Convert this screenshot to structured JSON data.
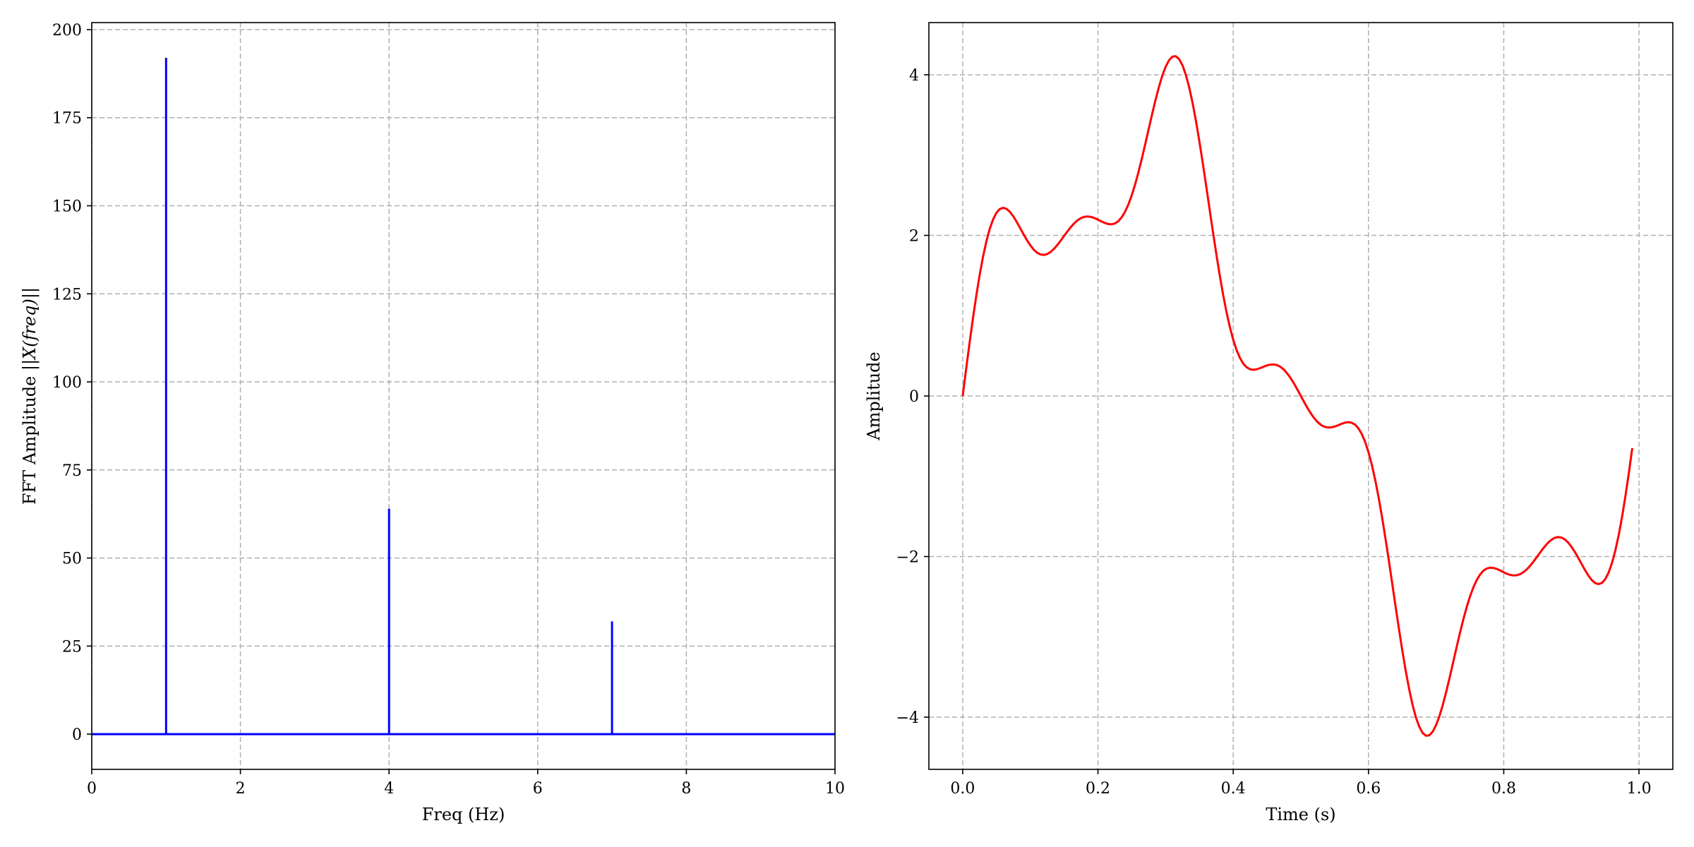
{
  "chart_data": [
    {
      "type": "stem",
      "xlabel": "Freq (Hz)",
      "ylabel_prefix": "FFT Amplitude ",
      "ylabel_math": "||X(freq)||",
      "xlim": [
        0,
        10
      ],
      "ylim": [
        -10,
        202
      ],
      "xticks": [
        0,
        2,
        4,
        6,
        8,
        10
      ],
      "yticks": [
        0,
        25,
        50,
        75,
        100,
        125,
        150,
        175,
        200
      ],
      "grid": true,
      "color": "#0000ff",
      "baseline": [
        0,
        10
      ],
      "stems": [
        {
          "x": 1,
          "y": 192
        },
        {
          "x": 4,
          "y": 64
        },
        {
          "x": 7,
          "y": 32
        }
      ]
    },
    {
      "type": "line",
      "xlabel": "Time (s)",
      "ylabel": "Amplitude",
      "xlim": [
        -0.05,
        1.05
      ],
      "ylim": [
        -4.65,
        4.65
      ],
      "xticks": [
        0.0,
        0.2,
        0.4,
        0.6,
        0.8,
        1.0
      ],
      "yticks": [
        -4,
        -2,
        0,
        2,
        4
      ],
      "grid": true,
      "color": "#ff0000",
      "x_range": [
        0,
        0.99
      ],
      "sample_step": 0.005,
      "series": [
        {
          "expression": "3*sin(2*pi*1*t) + sin(2*pi*4*t) + 0.5*sin(2*pi*7*t)",
          "components": [
            {
              "amplitude": 3,
              "freq_hz": 1
            },
            {
              "amplitude": 1,
              "freq_hz": 4
            },
            {
              "amplitude": 0.5,
              "freq_hz": 7
            }
          ]
        }
      ]
    }
  ]
}
